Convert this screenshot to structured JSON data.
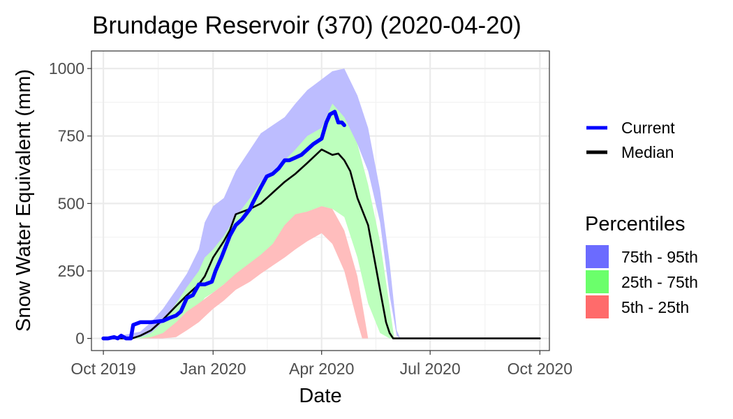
{
  "chart_data": {
    "type": "area",
    "title": "Brundage Reservoir (370) (2020-04-20)",
    "xlabel": "Date",
    "ylabel": "Snow Water Equivalent (mm)",
    "x_tick_labels": [
      "Oct 2019",
      "Jan 2020",
      "Apr 2020",
      "Jul 2020",
      "Oct 2020"
    ],
    "x_tick_dates": [
      "2019-10-01",
      "2020-01-01",
      "2020-04-01",
      "2020-07-01",
      "2020-10-01"
    ],
    "xlim": [
      "2019-09-21",
      "2020-10-09"
    ],
    "y_ticks": [
      0,
      250,
      500,
      750,
      1000
    ],
    "ylim": [
      -45,
      1065
    ],
    "grid": true,
    "legend_position": "right",
    "lines_legend": [
      {
        "name": "Current",
        "color": "#0000ff"
      },
      {
        "name": "Median",
        "color": "#000000"
      }
    ],
    "percentiles_title": "Percentiles",
    "bands": [
      {
        "name": "75th - 95th",
        "legend_color": "#6b6bff",
        "fill_color": "#bdbdff",
        "x": [
          "2019-10-01",
          "2019-10-15",
          "2019-11-01",
          "2019-11-10",
          "2019-11-20",
          "2019-12-01",
          "2019-12-10",
          "2019-12-20",
          "2019-12-25",
          "2020-01-01",
          "2020-01-10",
          "2020-01-20",
          "2020-02-01",
          "2020-02-10",
          "2020-02-20",
          "2020-03-01",
          "2020-03-10",
          "2020-03-20",
          "2020-04-01",
          "2020-04-10",
          "2020-04-20",
          "2020-05-01",
          "2020-05-10",
          "2020-05-20",
          "2020-05-28",
          "2020-06-03",
          "2020-06-06",
          "2020-10-01"
        ],
        "lower": [
          0,
          0,
          0,
          0,
          0,
          30,
          80,
          150,
          185,
          230,
          300,
          370,
          430,
          470,
          530,
          590,
          640,
          680,
          720,
          750,
          760,
          720,
          620,
          430,
          160,
          10,
          0,
          0
        ],
        "upper": [
          0,
          10,
          25,
          60,
          110,
          180,
          240,
          330,
          430,
          490,
          520,
          620,
          700,
          760,
          790,
          820,
          870,
          920,
          960,
          990,
          1000,
          900,
          780,
          550,
          280,
          30,
          0,
          0
        ]
      },
      {
        "name": "25th - 75th",
        "legend_color": "#6bff6b",
        "fill_color": "#bdffbd",
        "x": [
          "2019-10-01",
          "2019-10-20",
          "2019-11-01",
          "2019-11-10",
          "2019-11-20",
          "2019-12-01",
          "2019-12-10",
          "2019-12-20",
          "2019-12-25",
          "2020-01-01",
          "2020-01-10",
          "2020-01-20",
          "2020-02-01",
          "2020-02-10",
          "2020-02-20",
          "2020-03-01",
          "2020-03-10",
          "2020-03-20",
          "2020-04-01",
          "2020-04-10",
          "2020-04-20",
          "2020-05-01",
          "2020-05-10",
          "2020-05-20",
          "2020-05-28",
          "2020-06-01",
          "2020-10-01"
        ],
        "lower": [
          0,
          0,
          0,
          0,
          10,
          50,
          90,
          120,
          150,
          170,
          200,
          230,
          260,
          300,
          330,
          370,
          400,
          430,
          470,
          480,
          450,
          300,
          130,
          20,
          0,
          0,
          0
        ],
        "upper": [
          0,
          0,
          5,
          20,
          60,
          130,
          190,
          250,
          300,
          330,
          380,
          450,
          520,
          580,
          620,
          660,
          700,
          750,
          780,
          870,
          820,
          720,
          570,
          360,
          120,
          0,
          0
        ]
      },
      {
        "name": "5th - 25th",
        "legend_color": "#ff6b6b",
        "fill_color": "#ffbdbd",
        "x": [
          "2019-10-01",
          "2019-11-01",
          "2019-11-10",
          "2019-11-20",
          "2019-12-01",
          "2019-12-10",
          "2019-12-20",
          "2020-01-01",
          "2020-01-10",
          "2020-01-20",
          "2020-02-01",
          "2020-02-10",
          "2020-02-20",
          "2020-03-01",
          "2020-03-10",
          "2020-03-20",
          "2020-04-01",
          "2020-04-10",
          "2020-04-20",
          "2020-05-01",
          "2020-05-05",
          "2020-05-10",
          "2020-10-01"
        ],
        "lower": [
          0,
          0,
          0,
          0,
          5,
          30,
          60,
          110,
          140,
          180,
          210,
          240,
          270,
          300,
          330,
          360,
          390,
          350,
          250,
          60,
          0,
          0,
          0
        ],
        "upper": [
          0,
          0,
          5,
          20,
          60,
          100,
          130,
          170,
          200,
          240,
          280,
          310,
          350,
          420,
          460,
          470,
          490,
          480,
          400,
          230,
          130,
          0,
          0
        ]
      }
    ],
    "series": [
      {
        "name": "Current",
        "color": "#0000ff",
        "x": [
          "2019-10-01",
          "2019-10-05",
          "2019-10-10",
          "2019-10-13",
          "2019-10-16",
          "2019-10-20",
          "2019-10-24",
          "2019-10-26",
          "2019-11-01",
          "2019-11-10",
          "2019-11-20",
          "2019-11-25",
          "2019-12-01",
          "2019-12-05",
          "2019-12-10",
          "2019-12-15",
          "2019-12-20",
          "2019-12-25",
          "2019-12-31",
          "2020-01-03",
          "2020-01-08",
          "2020-01-15",
          "2020-01-20",
          "2020-01-25",
          "2020-02-01",
          "2020-02-03",
          "2020-02-10",
          "2020-02-15",
          "2020-02-20",
          "2020-02-25",
          "2020-03-01",
          "2020-03-05",
          "2020-03-10",
          "2020-03-15",
          "2020-03-20",
          "2020-03-25",
          "2020-04-01",
          "2020-04-05",
          "2020-04-08",
          "2020-04-12",
          "2020-04-15",
          "2020-04-18",
          "2020-04-20"
        ],
        "values": [
          0,
          0,
          5,
          0,
          10,
          0,
          0,
          50,
          60,
          60,
          65,
          75,
          85,
          100,
          150,
          160,
          200,
          200,
          210,
          250,
          300,
          380,
          420,
          440,
          480,
          500,
          560,
          600,
          610,
          630,
          660,
          660,
          670,
          680,
          700,
          720,
          740,
          800,
          830,
          840,
          800,
          800,
          790
        ]
      },
      {
        "name": "Median",
        "color": "#000000",
        "x": [
          "2019-10-01",
          "2019-10-25",
          "2019-11-01",
          "2019-11-10",
          "2019-11-20",
          "2019-12-01",
          "2019-12-10",
          "2019-12-20",
          "2019-12-25",
          "2020-01-01",
          "2020-01-10",
          "2020-01-15",
          "2020-01-20",
          "2020-02-01",
          "2020-02-10",
          "2020-02-20",
          "2020-03-01",
          "2020-03-10",
          "2020-03-20",
          "2020-04-01",
          "2020-04-10",
          "2020-04-15",
          "2020-04-20",
          "2020-04-25",
          "2020-05-01",
          "2020-05-10",
          "2020-05-15",
          "2020-05-20",
          "2020-05-25",
          "2020-05-28",
          "2020-05-31",
          "2020-10-01"
        ],
        "values": [
          0,
          0,
          10,
          30,
          70,
          120,
          160,
          200,
          230,
          300,
          360,
          400,
          460,
          480,
          500,
          540,
          580,
          610,
          650,
          700,
          680,
          685,
          660,
          620,
          520,
          420,
          300,
          180,
          60,
          20,
          0,
          0
        ]
      }
    ]
  }
}
